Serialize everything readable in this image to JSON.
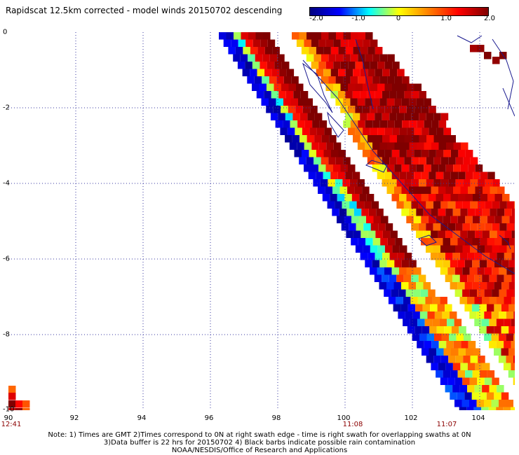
{
  "title": "Rapidscat 12.5km corrected - model winds 20150702 descending",
  "colorbar": {
    "labels": [
      "-2.0",
      "-1.0",
      "0",
      "1.0",
      "2.0"
    ],
    "stops": [
      "#00007f",
      "#0000ff",
      "#00ffff",
      "#ffff00",
      "#ff7f00",
      "#ff0000",
      "#7f0000"
    ]
  },
  "axes": {
    "x_ticks": [
      "90",
      "92",
      "94",
      "96",
      "98",
      "100",
      "102",
      "104"
    ],
    "y_ticks": [
      "0",
      "-2",
      "-4",
      "-6",
      "-8",
      "-10"
    ]
  },
  "times": {
    "left": "12:41",
    "mid": "11:08",
    "right": "11:07"
  },
  "notes": {
    "line1": "Note: 1) Times are GMT 2)Times correspond to 0N at right swath edge - time is right swath for overlapping swaths at 0N",
    "line2": "3)Data buffer is 22 hrs for 20150702 4) Black barbs indicate possible rain contamination",
    "line3": "NOAA/NESDIS/Office of Research and Applications"
  },
  "chart_data": {
    "type": "heatmap",
    "x_range_lon": [
      90,
      105
    ],
    "y_range_lat": [
      0,
      -10
    ],
    "value_range": [
      -2.0,
      2.0
    ],
    "units": "wind speed difference (corrected - model)",
    "swaths": [
      {
        "name": "western swath",
        "edge_values": "blue to cyan (negative)",
        "interior_values": "green to red (positive)"
      },
      {
        "name": "eastern swath",
        "edge_values": "cyan/green",
        "interior_values": "orange to dark red (near +2.0)"
      }
    ]
  }
}
